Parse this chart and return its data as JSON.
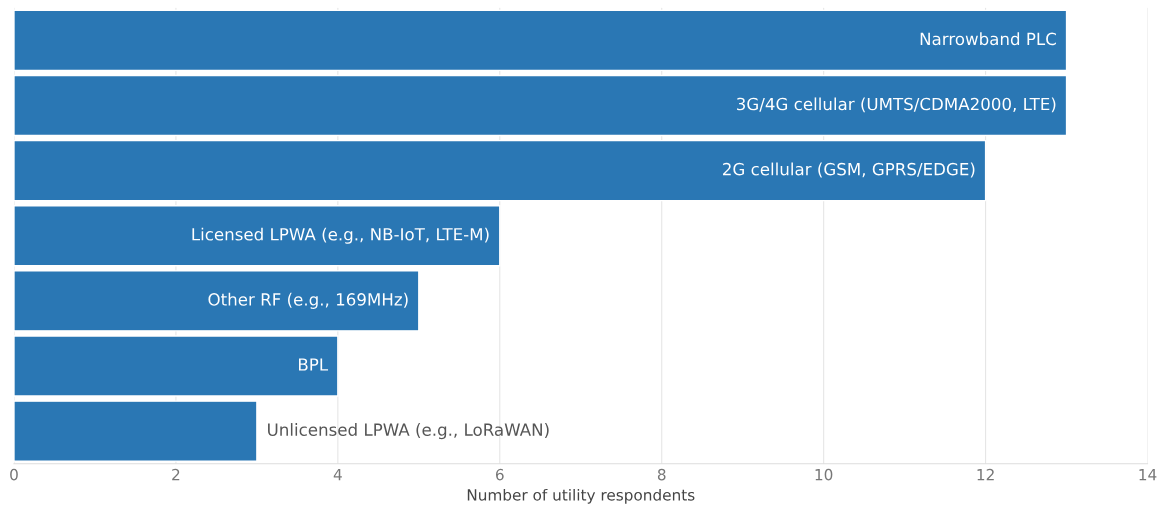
{
  "chart_data": {
    "type": "bar",
    "orientation": "horizontal",
    "xlabel": "Number of utility respondents",
    "categories": [
      "Narrowband PLC",
      "3G/4G cellular (UMTS/CDMA2000, LTE)",
      "2G cellular (GSM, GPRS/EDGE)",
      "Licensed LPWA (e.g., NB-IoT, LTE-M)",
      "Other RF (e.g., 169MHz)",
      "BPL",
      "Unlicensed LPWA (e.g., LoRaWAN)"
    ],
    "values": [
      13,
      13,
      12,
      6,
      5,
      4,
      3
    ],
    "color": "#2a77b4",
    "xlim": [
      0,
      14
    ],
    "xticks": [
      0,
      2,
      4,
      6,
      8,
      10,
      12,
      14
    ],
    "grid": "x",
    "tick_labels": "x"
  }
}
